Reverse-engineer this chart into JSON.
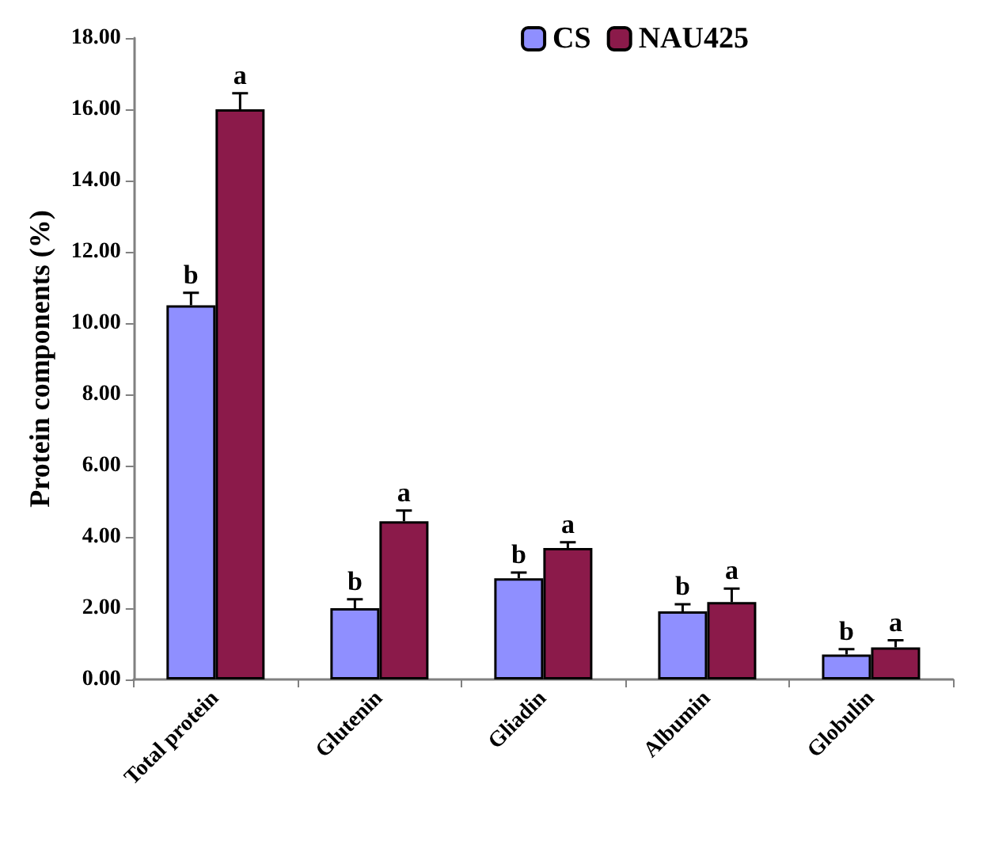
{
  "chart_data": {
    "type": "bar",
    "ylabel": "Protein components (%)",
    "categories": [
      "Total protein",
      "Glutenin",
      "Gliadin",
      "Albumin",
      "Globulin"
    ],
    "series": [
      {
        "name": "CS",
        "color": "#8f8fff",
        "values": [
          10.5,
          2.0,
          2.84,
          1.91,
          0.7
        ],
        "errors": [
          0.35,
          0.25,
          0.16,
          0.2,
          0.15
        ],
        "value_labels": [
          "b",
          "b",
          "b",
          "b",
          "b"
        ]
      },
      {
        "name": "NAU425",
        "color": "#8b1a4a",
        "values": [
          16.0,
          4.44,
          3.69,
          2.17,
          0.9
        ],
        "errors": [
          0.45,
          0.3,
          0.16,
          0.38,
          0.2
        ],
        "value_labels": [
          "a",
          "a",
          "a",
          "a",
          "a"
        ]
      }
    ],
    "ylim": [
      0,
      18
    ],
    "yticks": [
      {
        "value": 0,
        "label": "0.00"
      },
      {
        "value": 2,
        "label": "2.00"
      },
      {
        "value": 4,
        "label": "4.00"
      },
      {
        "value": 6,
        "label": "6.00"
      },
      {
        "value": 8,
        "label": "8.00"
      },
      {
        "value": 10,
        "label": "10.00"
      },
      {
        "value": 12,
        "label": "12.00"
      },
      {
        "value": 14,
        "label": "14.00"
      },
      {
        "value": 16,
        "label": "16.00"
      },
      {
        "value": 18,
        "label": "18.00"
      }
    ],
    "grid": false,
    "legend": "top right"
  }
}
